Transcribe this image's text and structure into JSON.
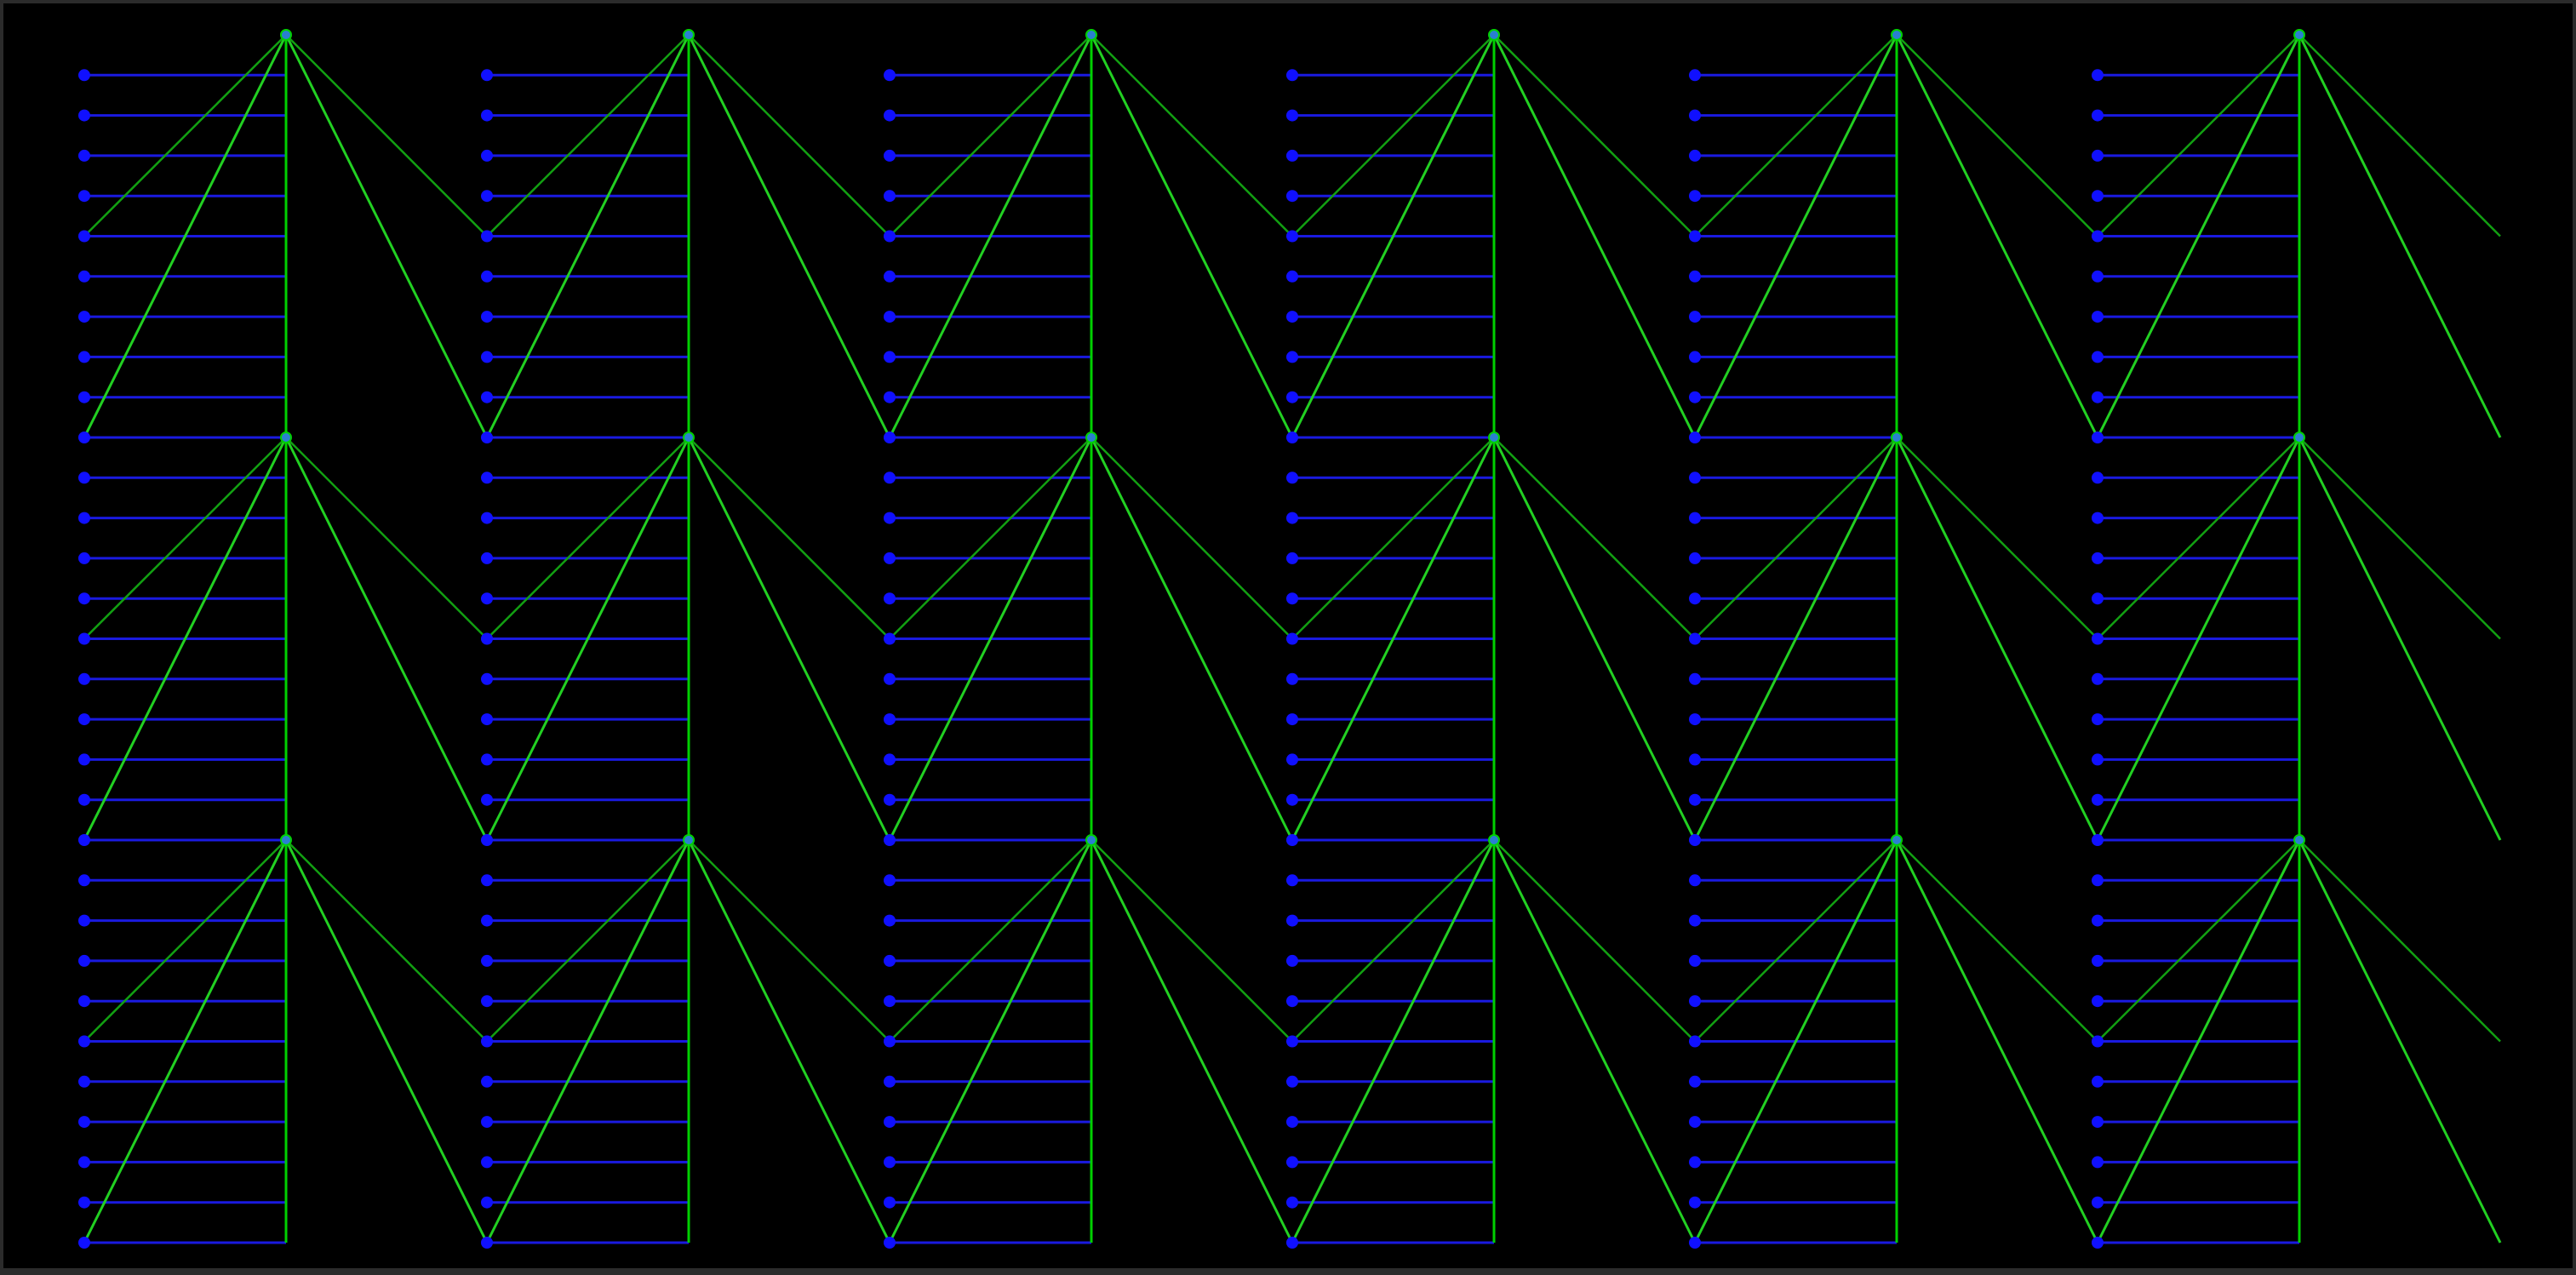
{
  "colors": {
    "frame": "#2b2b2b",
    "background": "#000000",
    "horizontal_line": "#1a1ae0",
    "node": "#1010ff",
    "hub": "#2a7fd0",
    "vertical_line": "#00d000",
    "green_strong": "#22d022",
    "green_thin": "#12a012"
  },
  "icons": {
    "node": "circle-node-icon",
    "hub": "hub-node-icon"
  },
  "pattern": {
    "columns": 6,
    "rows": 3,
    "lines_per_cell": 10,
    "hub_to_node_links": [
      {
        "target_index": 0,
        "style": "strong",
        "side": "left"
      },
      {
        "target_index": 5,
        "style": "thin",
        "side": "left"
      },
      {
        "target_index": 0,
        "style": "strong",
        "side": "right"
      },
      {
        "target_index": 5,
        "style": "thin",
        "side": "right"
      }
    ]
  }
}
